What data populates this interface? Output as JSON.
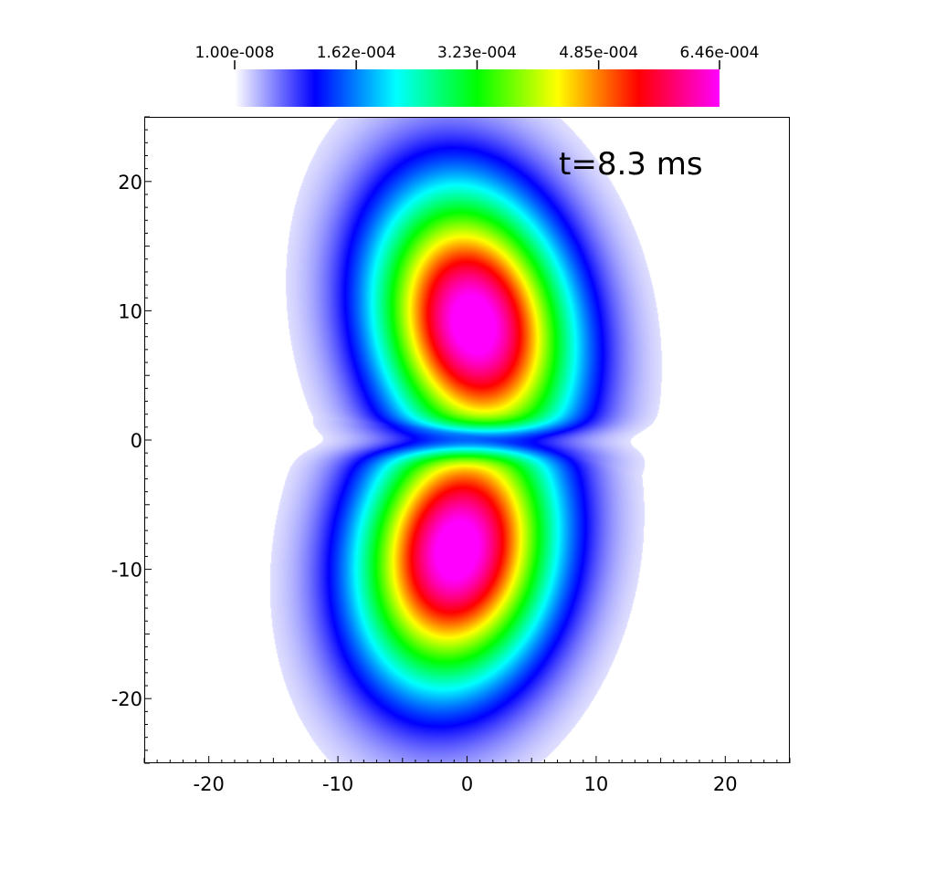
{
  "chart_data": {
    "type": "heatmap",
    "title": "",
    "xlabel": "",
    "ylabel": "",
    "xlim": [
      -25,
      25
    ],
    "ylim": [
      -25,
      25
    ],
    "x_ticks": [
      {
        "value": -20,
        "label": "-20"
      },
      {
        "value": -10,
        "label": "-10"
      },
      {
        "value": 0,
        "label": "0"
      },
      {
        "value": 10,
        "label": "10"
      },
      {
        "value": 20,
        "label": "20"
      }
    ],
    "y_ticks": [
      {
        "value": 20,
        "label": "20"
      },
      {
        "value": 10,
        "label": "10"
      },
      {
        "value": 0,
        "label": "0"
      },
      {
        "value": -10,
        "label": "-10"
      },
      {
        "value": -20,
        "label": "-20"
      }
    ],
    "annotation": "t=8.3 ms",
    "colorbar": {
      "min": 1e-08,
      "max": 0.000646,
      "tick_labels": [
        "1.00e-008",
        "1.62e-004",
        "3.23e-004",
        "4.85e-004",
        "6.46e-004"
      ],
      "tick_values": [
        1e-08,
        0.000162,
        0.000323,
        0.000485,
        0.000646
      ],
      "colormap": [
        "#ffffff",
        "#0000ff",
        "#00ffff",
        "#00ff00",
        "#ffff00",
        "#ff0000",
        "#ff00ff"
      ]
    },
    "field": {
      "lobes": [
        {
          "x": 0.5,
          "y": 9.0,
          "peak": 0.000646
        },
        {
          "x": -0.8,
          "y": -8.5,
          "peak": 0.000646
        }
      ]
    }
  }
}
